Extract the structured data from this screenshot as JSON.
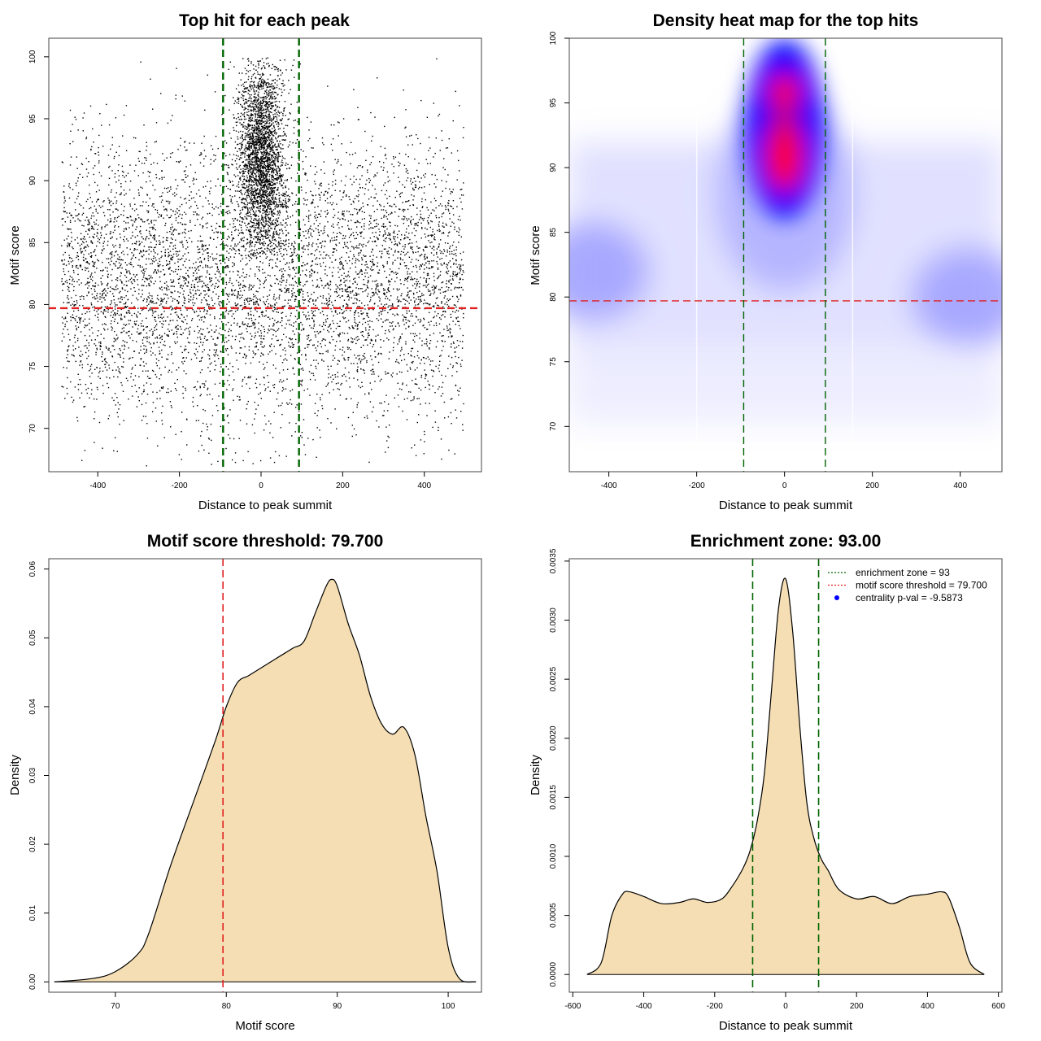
{
  "chart_data": [
    {
      "type": "scatter",
      "title": "Top hit for each peak",
      "xlabel": "Distance to peak summit",
      "ylabel": "Motif score",
      "xlim": [
        -520,
        540
      ],
      "ylim": [
        66.5,
        101.5
      ],
      "xticks": [
        -400,
        -200,
        0,
        200,
        400
      ],
      "yticks": [
        70,
        75,
        80,
        85,
        90,
        95,
        100
      ],
      "grid": false,
      "points_description_approx": {
        "count": 9000,
        "background": {
          "x_range": [
            -490,
            495
          ],
          "y_center": 82,
          "y_sd": 5.5,
          "y_range": [
            67,
            100
          ]
        },
        "central_cluster": {
          "x_center": 0,
          "x_sd": 28,
          "y_range": [
            84,
            100
          ],
          "y_peak": 92
        }
      },
      "hlines": [
        {
          "y": 79.7,
          "color": "#e02020",
          "style": "dashed"
        }
      ],
      "vlines": [
        {
          "x": -93,
          "color": "#006400",
          "style": "dashed"
        },
        {
          "x": 93,
          "color": "#006400",
          "style": "dashed"
        }
      ]
    },
    {
      "type": "heatmap",
      "title": "Density heat map for the top hits",
      "xlabel": "Distance to peak summit",
      "ylabel": "Motif score",
      "xlim": [
        -490,
        495
      ],
      "ylim": [
        66.5,
        100
      ],
      "xticks": [
        -400,
        -200,
        0,
        200,
        400
      ],
      "yticks": [
        70,
        75,
        80,
        85,
        90,
        95,
        100
      ],
      "colors": [
        "#ffffff",
        "#0000ff",
        "#ff0000"
      ],
      "hlines": [
        {
          "y": 79.7,
          "color": "#e02020",
          "style": "dashed"
        }
      ],
      "vlines": [
        {
          "x": -93,
          "color": "#006400",
          "style": "dashed"
        },
        {
          "x": 93,
          "color": "#006400",
          "style": "dashed"
        }
      ]
    },
    {
      "type": "area",
      "title": "Motif score threshold: 79.700",
      "xlabel": "Motif score",
      "ylabel": "Density",
      "xlim": [
        64,
        103
      ],
      "ylim": [
        -0.0015,
        0.0615
      ],
      "xticks": [
        70,
        80,
        90,
        100
      ],
      "yticks": [
        0.0,
        0.01,
        0.02,
        0.03,
        0.04,
        0.05,
        0.06
      ],
      "ytick_labels": [
        "0.00",
        "0.01",
        "0.02",
        "0.03",
        "0.04",
        "0.05",
        "0.06"
      ],
      "fill": "#f5deb3",
      "x": [
        64.5,
        68,
        70,
        72,
        73,
        75,
        77,
        79,
        80,
        81,
        82,
        83,
        84,
        85,
        86,
        87,
        88,
        89,
        89.5,
        90,
        91,
        92,
        93,
        94,
        95,
        96,
        97,
        98,
        99,
        100,
        101,
        102.5
      ],
      "y": [
        0.0,
        0.0005,
        0.0015,
        0.004,
        0.007,
        0.017,
        0.026,
        0.035,
        0.04,
        0.0435,
        0.0445,
        0.0455,
        0.0465,
        0.0475,
        0.0485,
        0.0495,
        0.0535,
        0.0575,
        0.0585,
        0.0575,
        0.052,
        0.0475,
        0.0415,
        0.0375,
        0.036,
        0.037,
        0.033,
        0.024,
        0.016,
        0.005,
        0.0005,
        0.0
      ],
      "vlines": [
        {
          "x": 79.7,
          "color": "#e02020",
          "style": "dashed"
        }
      ]
    },
    {
      "type": "area",
      "title": "Enrichment zone: 93.00",
      "xlabel": "Distance to peak summit",
      "ylabel": "Density",
      "xlim": [
        -610,
        610
      ],
      "ylim": [
        -0.00015,
        0.00352
      ],
      "xticks": [
        -600,
        -400,
        -200,
        0,
        200,
        400,
        600
      ],
      "yticks": [
        0.0,
        0.0005,
        0.001,
        0.0015,
        0.002,
        0.0025,
        0.003,
        0.0035
      ],
      "ytick_labels": [
        "0.0000",
        "0.0005",
        "0.0010",
        "0.0015",
        "0.0020",
        "0.0025",
        "0.0030",
        "0.0035"
      ],
      "fill": "#f5deb3",
      "x": [
        -560,
        -520,
        -490,
        -460,
        -440,
        -400,
        -350,
        -300,
        -260,
        -220,
        -180,
        -150,
        -120,
        -100,
        -80,
        -60,
        -40,
        -20,
        0,
        20,
        40,
        60,
        80,
        100,
        120,
        150,
        200,
        250,
        300,
        350,
        400,
        440,
        460,
        490,
        520,
        560
      ],
      "y": [
        0.0,
        0.0001,
        0.0005,
        0.00068,
        0.0007,
        0.00066,
        0.0006,
        0.00061,
        0.00064,
        0.00061,
        0.00064,
        0.00075,
        0.0009,
        0.00105,
        0.0013,
        0.0017,
        0.0024,
        0.0031,
        0.00335,
        0.0029,
        0.0021,
        0.00145,
        0.00115,
        0.00098,
        0.00088,
        0.00072,
        0.00064,
        0.00066,
        0.0006,
        0.00066,
        0.00068,
        0.0007,
        0.00065,
        0.0004,
        0.0001,
        0.0
      ],
      "vlines": [
        {
          "x": -93,
          "color": "#006400",
          "style": "dashed"
        },
        {
          "x": 93,
          "color": "#006400",
          "style": "dashed"
        }
      ],
      "legend": {
        "placement": "top-right",
        "entries": [
          {
            "label": "enrichment zone = 93",
            "color": "#006400",
            "marker": "dotted-line"
          },
          {
            "label": "motif score threshold = 79.700",
            "color": "#e02020",
            "marker": "dotted-line"
          },
          {
            "label": "centrality p-val = -9.5873",
            "color": "#0000ff",
            "marker": "point"
          }
        ]
      }
    }
  ]
}
